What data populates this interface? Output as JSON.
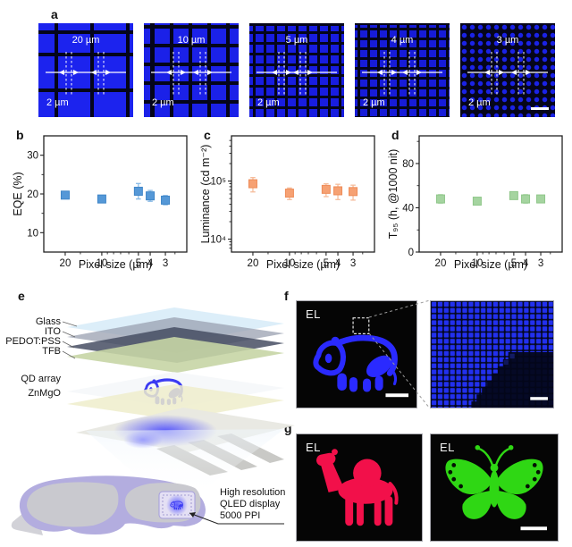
{
  "panels": {
    "a": {
      "label": "a",
      "micrographs": [
        {
          "name": "pixel-array-20um",
          "pitch_label": "20 µm",
          "gap_label": "2 µm"
        },
        {
          "name": "pixel-array-10um",
          "pitch_label": "10 µm",
          "gap_label": "2 µm"
        },
        {
          "name": "pixel-array-5um",
          "pitch_label": "5 µm",
          "gap_label": "2 µm"
        },
        {
          "name": "pixel-array-4um",
          "pitch_label": "4 µm",
          "gap_label": "2 µm"
        },
        {
          "name": "pixel-array-3um",
          "pitch_label": "3 µm",
          "gap_label": "2 µm"
        }
      ]
    },
    "b": {
      "label": "b"
    },
    "c": {
      "label": "c"
    },
    "d": {
      "label": "d"
    },
    "e": {
      "label": "e",
      "layer_labels": [
        "Glass",
        "ITO",
        "PEDOT:PSS",
        "TFB",
        "QD array",
        "ZnMgO"
      ],
      "annotation_lines": [
        "High resolution",
        "QLED display",
        "5000 PPI"
      ]
    },
    "f": {
      "label": "f",
      "el_label": "EL"
    },
    "g": {
      "label": "g",
      "el_left": "EL",
      "el_right": "EL"
    }
  },
  "colors": {
    "micrograph_blue": "#1c23ee",
    "el_blue": "#2a2aff",
    "el_red": "#f2104a",
    "el_green": "#2fd714"
  },
  "chart_data": [
    {
      "id": "b",
      "type": "scatter",
      "x": [
        20,
        10,
        5,
        4,
        3
      ],
      "values": [
        19.7,
        18.7,
        20.7,
        19.5,
        18.4
      ],
      "errors": [
        0.8,
        0.6,
        2.0,
        1.4,
        1.2
      ],
      "xlabel": "Pixel size (µm)",
      "ylabel": "EQE (%)",
      "xscale": "log-reversed",
      "xlim": [
        30,
        2
      ],
      "xminor": [
        15,
        9,
        8,
        7,
        6,
        2.5
      ],
      "yscale": "linear",
      "ylim": [
        5,
        35
      ],
      "yticks": [
        10,
        20,
        30
      ],
      "yminor": [
        15,
        25
      ],
      "marker_color": "#5598d7",
      "edge_color": "#3f86c8",
      "error_color": "#8abbe6"
    },
    {
      "id": "c",
      "type": "scatter",
      "x": [
        20,
        10,
        5,
        4,
        3
      ],
      "values": [
        90000,
        62000,
        72000,
        68000,
        66000
      ],
      "errors": [
        25000,
        14000,
        18000,
        20000,
        19000
      ],
      "xlabel": "Pixel size (µm)",
      "ylabel": "Luminance (cd m⁻²)",
      "xscale": "log-reversed",
      "xlim": [
        30,
        2
      ],
      "xminor": [
        15,
        9,
        8,
        7,
        6,
        2.5
      ],
      "yscale": "log",
      "ylim": [
        6000,
        600000
      ],
      "yticks": [
        10000,
        100000
      ],
      "ytick_labels": [
        "10⁴",
        "10⁵"
      ],
      "yminor": [
        7000,
        8000,
        9000,
        20000,
        30000,
        40000,
        50000,
        60000,
        70000,
        80000,
        90000,
        200000,
        300000,
        400000,
        500000
      ],
      "marker_color": "#f6a173",
      "edge_color": "#ee8c58",
      "error_color": "#f6bd9c"
    },
    {
      "id": "d",
      "type": "scatter",
      "x": [
        20,
        10,
        5,
        4,
        3
      ],
      "values": [
        48,
        46,
        51,
        48,
        48
      ],
      "errors": [
        4,
        3,
        3,
        4,
        3
      ],
      "xlabel": "Pixel size (µm)",
      "ylabel": "T₉₅ (h, @1000 nit)",
      "xscale": "log-reversed",
      "xlim": [
        30,
        2
      ],
      "xminor": [
        15,
        9,
        8,
        7,
        6,
        2.5
      ],
      "yscale": "linear",
      "ylim": [
        0,
        105
      ],
      "yticks": [
        0,
        40,
        80
      ],
      "yminor": [
        20,
        60,
        100
      ],
      "marker_color": "#a5d4a0",
      "edge_color": "#8fc78a",
      "error_color": "#c6e4c2"
    }
  ]
}
